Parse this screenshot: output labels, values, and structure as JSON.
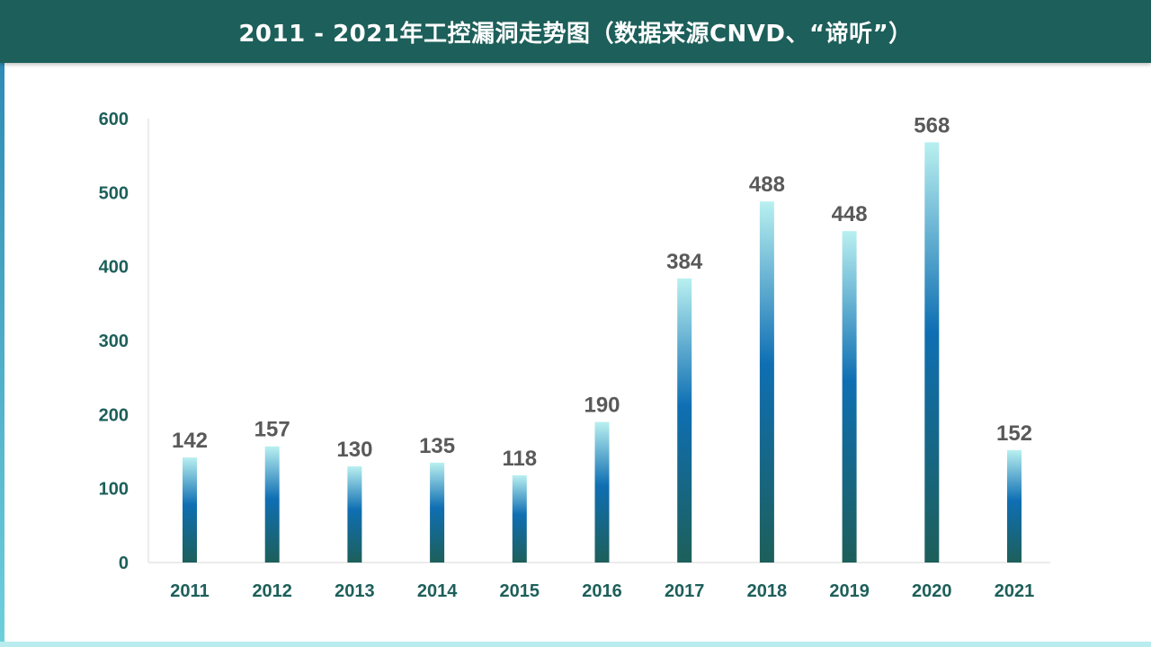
{
  "page": {
    "title": "2011 - 2021年工控漏洞走势图（数据来源CNVD、“谛听”）"
  },
  "colors": {
    "header_bg": "#1d5f5a",
    "axis_text": "#1d5f5a",
    "label_text": "#595959",
    "bar_top": "#b9f0f0",
    "bar_mid": "#0f6fb3",
    "bar_bottom": "#1d5f5a"
  },
  "chart_data": {
    "type": "bar",
    "title": "2011 - 2021年工控漏洞走势图（数据来源CNVD、“谛听”）",
    "categories": [
      "2011",
      "2012",
      "2013",
      "2014",
      "2015",
      "2016",
      "2017",
      "2018",
      "2019",
      "2020",
      "2021"
    ],
    "values": [
      142,
      157,
      130,
      135,
      118,
      190,
      384,
      488,
      448,
      568,
      152
    ],
    "ylim": [
      0,
      600
    ],
    "yticks": [
      0,
      100,
      200,
      300,
      400,
      500,
      600
    ],
    "xlabel": "",
    "ylabel": "",
    "grid": false,
    "legend": "none"
  }
}
